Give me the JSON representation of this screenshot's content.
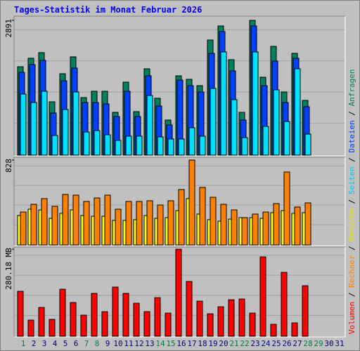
{
  "chart_data": {
    "type": "bar",
    "title": "Tages-Statistik im Monat Februar 2026",
    "categories": [
      "1",
      "2",
      "3",
      "4",
      "5",
      "6",
      "7",
      "8",
      "9",
      "10",
      "11",
      "12",
      "13",
      "14",
      "15",
      "16",
      "17",
      "18",
      "19",
      "20",
      "21",
      "22",
      "23",
      "24",
      "25",
      "26",
      "27",
      "28",
      "29",
      "30",
      "31"
    ],
    "label_colors": [
      "#008040",
      "#000080",
      "#000080",
      "#000080",
      "#000080",
      "#000080",
      "#008040",
      "#008040",
      "#000080",
      "#000080",
      "#000080",
      "#000080",
      "#000080",
      "#008040",
      "#008040",
      "#000080",
      "#000080",
      "#000080",
      "#000080",
      "#000080",
      "#008040",
      "#008040",
      "#000080",
      "#000080",
      "#000080",
      "#000080",
      "#000080",
      "#008040",
      "#008040",
      "#000080",
      "#000080"
    ],
    "legend_separator": " / ",
    "panels": [
      {
        "ylim": [
          0,
          2891
        ],
        "yticks": [
          2891
        ],
        "series": [
          {
            "name": "Anfragen",
            "color": "#00805c",
            "text_color": "#00805c",
            "values": [
              1892,
              2074,
              2195,
              1135,
              1741,
              2104,
              1226,
              1362,
              1362,
              908,
              1559,
              923,
              1847,
              1211,
              742,
              1695,
              1620,
              1483,
              2467,
              2770,
              2043,
              908,
              2891,
              1665,
              2331,
              1347,
              2180,
              1165,
              null,
              null,
              null
            ]
          },
          {
            "name": "Dateien",
            "color": "#0040ff",
            "text_color": "#0040ff",
            "values": [
              1771,
              1937,
              2028,
              893,
              1589,
              1862,
              1120,
              1120,
              1090,
              817,
              1362,
              817,
              1695,
              1044,
              636,
              1604,
              1483,
              1347,
              2180,
              2649,
              1801,
              742,
              2770,
              1483,
              2013,
              1120,
              2074,
              1029,
              null,
              null,
              null
            ]
          },
          {
            "name": "Seiten",
            "color": "#00e0ff",
            "text_color": "#00c8f0",
            "values": [
              1302,
              1120,
              1362,
              409,
              969,
              1347,
              484,
              515,
              424,
              303,
              394,
              394,
              1271,
              378,
              333,
              333,
              575,
              394,
              1423,
              2210,
              1181,
              363,
              2210,
              605,
              1393,
              711,
              1847,
              439,
              null,
              null,
              null
            ]
          }
        ]
      },
      {
        "ylim": [
          0,
          828
        ],
        "yticks": [
          828
        ],
        "series": [
          {
            "name": "Besuche",
            "color": "#ffff00",
            "text_color": "#e0e000",
            "values": [
              283,
              345,
              338,
              255,
              304,
              338,
              283,
              276,
              276,
              235,
              235,
              242,
              283,
              255,
              262,
              331,
              449,
              297,
              242,
              228,
              248,
              262,
              262,
              255,
              311,
              331,
              304,
              311,
              null,
              null,
              null
            ]
          },
          {
            "name": "Rechner",
            "color": "#ff8000",
            "text_color": "#ff8000",
            "values": [
              317,
              393,
              449,
              373,
              490,
              483,
              421,
              455,
              483,
              345,
              421,
              421,
              428,
              386,
              428,
              538,
              828,
              559,
              462,
              393,
              338,
              262,
              297,
              317,
              400,
              711,
              366,
              407,
              null,
              null,
              null
            ]
          }
        ]
      },
      {
        "ylim": [
          0,
          280.18
        ],
        "yticks": [
          {
            "value": 280.18,
            "label": "280.18 MB"
          }
        ],
        "series": [
          {
            "name": "Volumen",
            "color": "#ff0000",
            "text_color": "#ff0000",
            "values": [
              143.5,
              50.1,
              91.1,
              52.4,
              150.3,
              107.1,
              66.1,
              136.7,
              77.5,
              157.2,
              136.7,
              104.8,
              77.5,
              123.0,
              72.9,
              280.18,
              175.4,
              111.6,
              70.6,
              93.4,
              116.2,
              118.5,
              72.9,
              255.2,
              36.4,
              205.0,
              41.0,
              161.7,
              null,
              null,
              null
            ]
          }
        ]
      }
    ]
  }
}
